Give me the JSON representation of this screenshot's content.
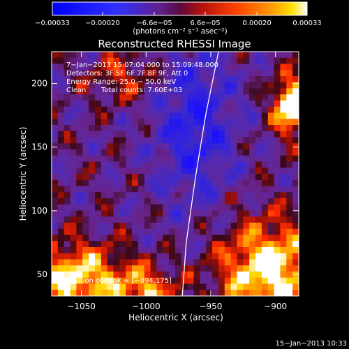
{
  "chart_data": {
    "type": "heatmap",
    "title": "Reconstructed RHESSI Image",
    "xlabel": "Heliocentric X (arcsec)",
    "ylabel": "Heliocentric Y (arcsec)",
    "xlim": [
      -1073,
      -882
    ],
    "ylim": [
      33,
      225
    ],
    "xticks": [
      -1050,
      -1000,
      -950,
      -900
    ],
    "xtick_labels": [
      "−1050",
      "−1000",
      "−950",
      "−900"
    ],
    "yticks": [
      50,
      100,
      150,
      200
    ],
    "ytick_labels": [
      "50",
      "100",
      "150",
      "200"
    ],
    "colorbar": {
      "range": [
        -0.00033,
        0.00033
      ],
      "ticks": [
        -0.00033,
        -0.0002,
        -6.6e-05,
        6.6e-05,
        0.0002,
        0.00033
      ],
      "tick_labels": [
        "−0.00033",
        "−0.00020",
        "−6.6e−05",
        "6.6e−05",
        "0.00020",
        "0.00033"
      ],
      "units": "(photons cm⁻² s⁻¹ asec⁻²)"
    },
    "annotations": [
      "7−Jan−2013 15:07:04.000 to 15:09:48.000",
      "Detectors: 3F 5F 6F 7F 8F 9F, Att 0",
      "Energy Range: 25.0 − 50.0 keV",
      "Clean",
      "Total counts: 7.60E+03"
    ],
    "peak_label": "Position of Peak = [−894,175]",
    "limb_curve_x_at_y": [
      [
        33,
        -972
      ],
      [
        75,
        -969
      ],
      [
        125,
        -962
      ],
      [
        175,
        -954
      ],
      [
        225,
        -944
      ]
    ],
    "grid": false
  },
  "footer": {
    "timestamp": "15−Jan−2013 10:33"
  },
  "colors": {
    "background": "#000000",
    "text": "#ffffff",
    "colormap": [
      "#0000ff",
      "#4030c0",
      "#6a2a9a",
      "#8a2a78",
      "#c01a0a",
      "#ff3a00",
      "#ff8a00",
      "#ffd000",
      "#ffffff"
    ]
  }
}
